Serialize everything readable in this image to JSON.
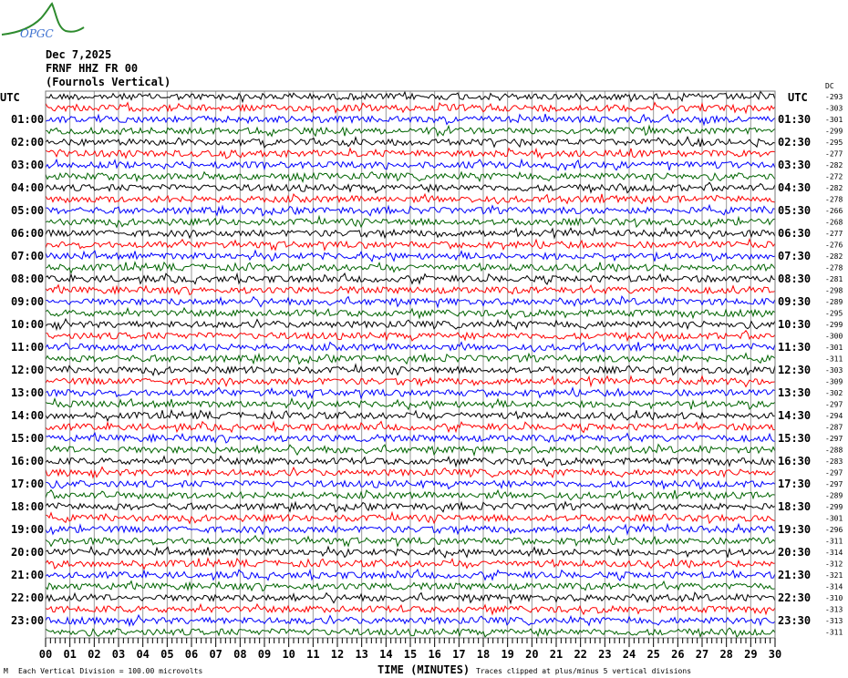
{
  "logo": {
    "text": "OPGC",
    "colors": {
      "curve": "#2e8b2e",
      "text": "#3a6fd0"
    }
  },
  "header": {
    "date": "Dec 7,2025",
    "station": "FRNF HHZ FR 00",
    "location": "(Fournols Vertical)"
  },
  "chart_data": {
    "type": "line",
    "title": "Dec 7,2025",
    "xlabel": "TIME (MINUTES)",
    "x_ticks": [
      "00",
      "01",
      "02",
      "03",
      "04",
      "05",
      "06",
      "07",
      "08",
      "09",
      "10",
      "11",
      "12",
      "13",
      "14",
      "15",
      "16",
      "17",
      "18",
      "19",
      "20",
      "21",
      "22",
      "23",
      "24",
      "25",
      "26",
      "27",
      "28",
      "29",
      "30"
    ],
    "xlim": [
      0,
      30
    ],
    "left_axis_label": "UTC",
    "right_axis_label": "UTC",
    "left_row_labels": [
      "01:00",
      "02:00",
      "03:00",
      "04:00",
      "05:00",
      "06:00",
      "07:00",
      "08:00",
      "09:00",
      "10:00",
      "11:00",
      "12:00",
      "13:00",
      "14:00",
      "15:00",
      "16:00",
      "17:00",
      "18:00",
      "19:00",
      "20:00",
      "21:00",
      "22:00",
      "23:00"
    ],
    "right_row_labels": [
      "01:30",
      "02:30",
      "03:30",
      "04:30",
      "05:30",
      "06:30",
      "07:30",
      "08:30",
      "09:30",
      "10:30",
      "11:30",
      "12:30",
      "13:30",
      "14:30",
      "15:30",
      "16:30",
      "17:30",
      "18:30",
      "19:30",
      "20:30",
      "21:30",
      "22:30",
      "23:30"
    ],
    "dc_label": "DC",
    "dc_offsets": [
      "-293",
      "-303",
      "-301",
      "-299",
      "-295",
      "-277",
      "-282",
      "-272",
      "-282",
      "-278",
      "-266",
      "-268",
      "-277",
      "-276",
      "-282",
      "-278",
      "-281",
      "-298",
      "-289",
      "-295",
      "-299",
      "-300",
      "-301",
      "-311",
      "-303",
      "-309",
      "-302",
      "-297",
      "-294",
      "-287",
      "-297",
      "-288",
      "-283",
      "-297",
      "-297",
      "-289",
      "-299",
      "-301",
      "-296",
      "-311",
      "-314",
      "-312",
      "-321",
      "-314",
      "-310",
      "-313",
      "-313",
      "-311"
    ],
    "trace_colors": [
      "#000000",
      "#ff0000",
      "#0000ff",
      "#006400"
    ],
    "grid": true,
    "grid_color": "#999999"
  },
  "footer": {
    "scale_note": "Each Vertical Division =  100.00 microvolts",
    "clip_note": "Traces clipped at plus/minus 5 vertical divisions",
    "corner_mark": "M"
  }
}
